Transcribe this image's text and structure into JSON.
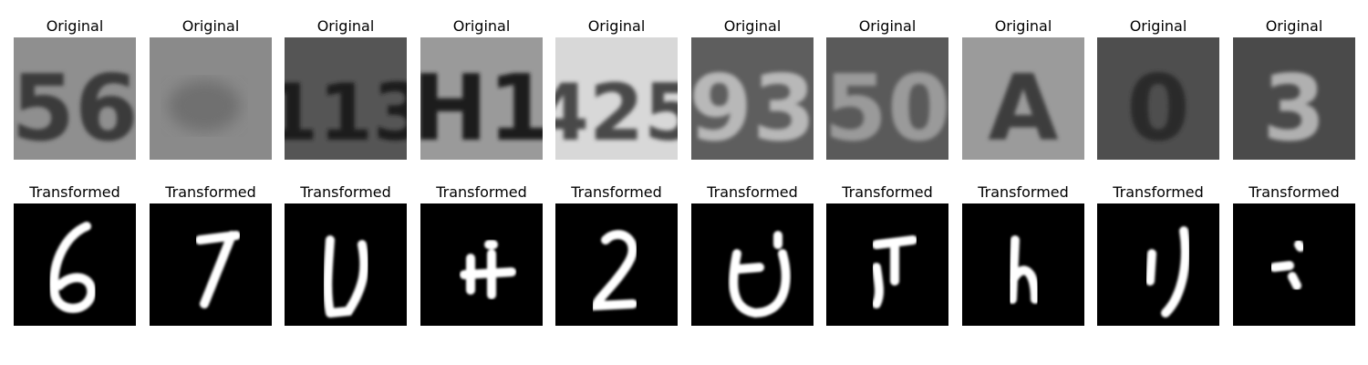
{
  "row_labels": {
    "original": "Original",
    "transformed": "Transformed"
  },
  "originals": [
    {
      "icon": "svhn-digit-crop",
      "digits": "56",
      "bg": "#8f8f8f",
      "fg": "#3a3a3a"
    },
    {
      "icon": "svhn-blurry-crop",
      "digits": "",
      "bg": "#8a8a8a",
      "fg": "#707070"
    },
    {
      "icon": "svhn-digit-crop",
      "digits": "113",
      "bg": "#555555",
      "fg": "#1e1e1e"
    },
    {
      "icon": "svhn-digit-crop",
      "digits": "H1",
      "bg": "#9a9a9a",
      "fg": "#1a1a1a"
    },
    {
      "icon": "svhn-digit-crop",
      "digits": "425",
      "bg": "#d8d8d8",
      "fg": "#4a4a4a"
    },
    {
      "icon": "svhn-digit-crop",
      "digits": "93",
      "bg": "#5e5e5e",
      "fg": "#b8b8b8"
    },
    {
      "icon": "svhn-digit-crop",
      "digits": "50",
      "bg": "#5a5a5a",
      "fg": "#9a9a9a"
    },
    {
      "icon": "svhn-digit-crop",
      "digits": "A",
      "bg": "#9b9b9b",
      "fg": "#3c3c3c"
    },
    {
      "icon": "svhn-digit-crop",
      "digits": "0",
      "bg": "#4e4e4e",
      "fg": "#2c2c2c"
    },
    {
      "icon": "svhn-digit-crop",
      "digits": "3",
      "bg": "#4a4a4a",
      "fg": "#b0b0b0"
    }
  ],
  "transformed": [
    {
      "icon": "mnist-style-digit",
      "glyph": "6"
    },
    {
      "icon": "mnist-style-digit",
      "glyph": "7"
    },
    {
      "icon": "mnist-style-digit",
      "glyph": "L"
    },
    {
      "icon": "mnist-style-digit",
      "glyph": "H"
    },
    {
      "icon": "mnist-style-digit",
      "glyph": "2"
    },
    {
      "icon": "mnist-style-digit",
      "glyph": "ring"
    },
    {
      "icon": "mnist-style-digit",
      "glyph": "T"
    },
    {
      "icon": "mnist-style-digit",
      "glyph": "h"
    },
    {
      "icon": "mnist-style-digit",
      "glyph": "bar"
    },
    {
      "icon": "mnist-style-digit",
      "glyph": "dots"
    }
  ]
}
